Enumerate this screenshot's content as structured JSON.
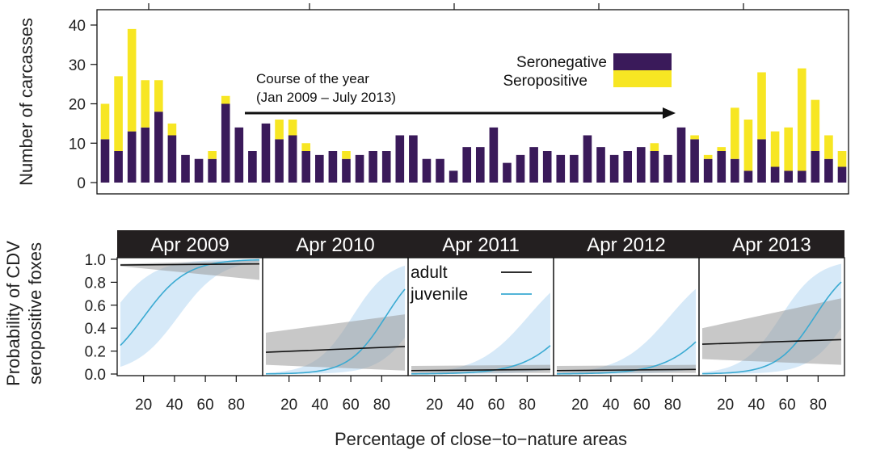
{
  "colors": {
    "seronegative": "#3a1a5a",
    "seropositive": "#f7e623",
    "adult_line": "#111111",
    "adult_band": "#9a9a9a",
    "juvenile_line": "#3aaad2",
    "juvenile_band": "#cfe5f7",
    "strip_bg": "#231f20"
  },
  "chart_data": [
    {
      "type": "bar",
      "stacked": true,
      "title": "",
      "xlabel": "",
      "ylabel": "Number of carcasses",
      "ylim": [
        0,
        43
      ],
      "yticks": [
        0,
        10,
        20,
        30,
        40
      ],
      "legend": {
        "position": "top-right",
        "entries": [
          "Seronegative",
          "Seropositive"
        ]
      },
      "annotation": {
        "line1": "Course of the year",
        "line2": "(Jan 2009 – July 2013)"
      },
      "series": [
        {
          "name": "Seronegative",
          "values": [
            11,
            8,
            13,
            14,
            18,
            12,
            7,
            6,
            6,
            20,
            14,
            8,
            15,
            11,
            12,
            8,
            7,
            8,
            6,
            7,
            8,
            8,
            12,
            12,
            6,
            6,
            3,
            9,
            9,
            14,
            5,
            7,
            9,
            8,
            7,
            7,
            12,
            9,
            7,
            8,
            9,
            8,
            7,
            14,
            11,
            6,
            8,
            6,
            3,
            11,
            4,
            3,
            3,
            8,
            6,
            4
          ]
        },
        {
          "name": "Seropositive",
          "values": [
            9,
            19,
            26,
            12,
            8,
            3,
            0,
            0,
            2,
            2,
            0,
            0,
            0,
            5,
            4,
            2,
            0,
            0,
            2,
            0,
            0,
            0,
            0,
            0,
            0,
            0,
            0,
            0,
            0,
            0,
            0,
            0,
            0,
            0,
            0,
            0,
            0,
            0,
            0,
            0,
            0,
            2,
            0,
            0,
            1,
            1,
            1,
            13,
            13,
            17,
            9,
            11,
            26,
            13,
            6,
            4
          ]
        }
      ]
    },
    {
      "type": "line",
      "ylabel": "Probability of CDV\nseropositive foxes",
      "xlabel": "Percentage of close−to−nature areas",
      "ylim": [
        0,
        1
      ],
      "xlim": [
        5,
        95
      ],
      "yticks": [
        "0.0",
        "0.2",
        "0.4",
        "0.6",
        "0.8",
        "1.0"
      ],
      "xticks": [
        "20",
        "40",
        "60",
        "80"
      ],
      "legend": {
        "position": "top-left",
        "entries": [
          "adult",
          "juvenile"
        ]
      },
      "panels": [
        {
          "label": "Apr 2009",
          "adult": {
            "x": [
              5,
              95
            ],
            "y": [
              0.95,
              0.96
            ],
            "lo": [
              0.94,
              0.82
            ],
            "hi": [
              0.96,
              0.99
            ]
          },
          "juvenile": {
            "intercept": -1.46,
            "slope": 0.0722,
            "band_lo_shift": -1.6,
            "band_hi_shift": 1.6
          }
        },
        {
          "label": "Apr 2010",
          "adult": {
            "x": [
              5,
              95
            ],
            "y": [
              0.19,
              0.24
            ],
            "lo": [
              0.08,
              0.03
            ],
            "hi": [
              0.36,
              0.52
            ]
          },
          "juvenile": {
            "intercept": -6.9,
            "slope": 0.0836,
            "band_lo_shift": -1.8,
            "band_hi_shift": 1.8
          }
        },
        {
          "label": "Apr 2011",
          "adult": {
            "x": [
              5,
              95
            ],
            "y": [
              0.03,
              0.04
            ],
            "lo": [
              0.01,
              0.01
            ],
            "hi": [
              0.07,
              0.08
            ]
          },
          "juvenile": {
            "intercept": -6.97,
            "slope": 0.0617,
            "band_lo_shift": -2.0,
            "band_hi_shift": 2.0
          }
        },
        {
          "label": "Apr 2012",
          "adult": {
            "x": [
              5,
              95
            ],
            "y": [
              0.03,
              0.04
            ],
            "lo": [
              0.01,
              0.01
            ],
            "hi": [
              0.07,
              0.08
            ]
          },
          "juvenile": {
            "intercept": -6.85,
            "slope": 0.0622,
            "band_lo_shift": -2.0,
            "band_hi_shift": 2.0
          }
        },
        {
          "label": "Apr 2013",
          "adult": {
            "x": [
              5,
              95
            ],
            "y": [
              0.26,
              0.3
            ],
            "lo": [
              0.13,
              0.08
            ],
            "hi": [
              0.4,
              0.66
            ]
          },
          "juvenile": {
            "intercept": -6.35,
            "slope": 0.0816,
            "band_lo_shift": -1.8,
            "band_hi_shift": 1.8
          }
        }
      ]
    }
  ]
}
